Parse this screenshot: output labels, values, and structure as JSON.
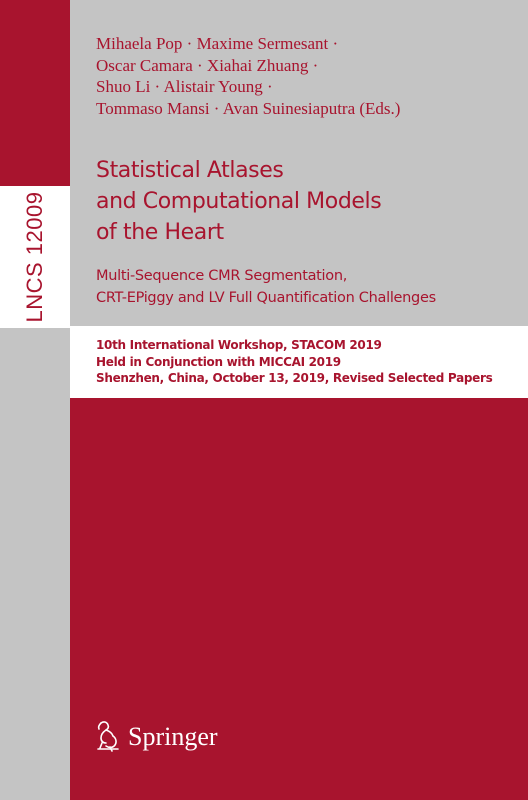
{
  "series": {
    "label": "LNCS 12009"
  },
  "editors": {
    "lines": [
      "Mihaela Pop · Maxime Sermesant ·",
      "Oscar Camara · Xiahai Zhuang ·",
      "Shuo Li · Alistair Young ·",
      "Tommaso Mansi · Avan Suinesiaputra (Eds.)"
    ]
  },
  "title": {
    "lines": [
      "Statistical Atlases",
      "and Computational Models",
      "of the Heart"
    ]
  },
  "subtitle": {
    "lines": [
      "Multi-Sequence CMR Segmentation,",
      "CRT-EPiggy and LV Full Quantification Challenges"
    ]
  },
  "conference": {
    "lines": [
      "10th International Workshop, STACOM 2019",
      "Held in Conjunction with MICCAI 2019",
      "Shenzhen, China, October 13, 2019, Revised Selected Papers"
    ]
  },
  "publisher": {
    "name": "Springer",
    "logo_icon": "springer-horse-icon"
  },
  "colors": {
    "brand_red": "#a8142e",
    "panel_grey": "#c4c4c4",
    "white": "#ffffff"
  }
}
